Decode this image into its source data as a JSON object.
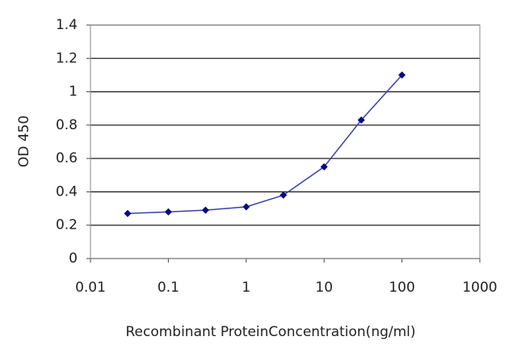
{
  "chart_data": {
    "type": "line",
    "x": [
      0.03,
      0.1,
      0.3,
      1,
      3,
      10,
      30,
      100
    ],
    "series": [
      {
        "name": null,
        "color": "#3a3fb0",
        "marker_color": "#0a0a80",
        "values": [
          0.27,
          0.28,
          0.29,
          0.31,
          0.38,
          0.55,
          0.83,
          1.1
        ]
      }
    ],
    "xlabel": "Recombinant ProteinConcentration(ng/ml)",
    "ylabel": "OD 450",
    "xscale": "log",
    "xlim": [
      0.01,
      1000
    ],
    "xticks": [
      0.01,
      0.1,
      1,
      10,
      100,
      1000
    ],
    "ylim": [
      0,
      1.4
    ],
    "yticks": [
      0,
      0.2,
      0.4,
      0.6,
      0.8,
      1,
      1.2,
      1.4
    ],
    "grid": true
  }
}
